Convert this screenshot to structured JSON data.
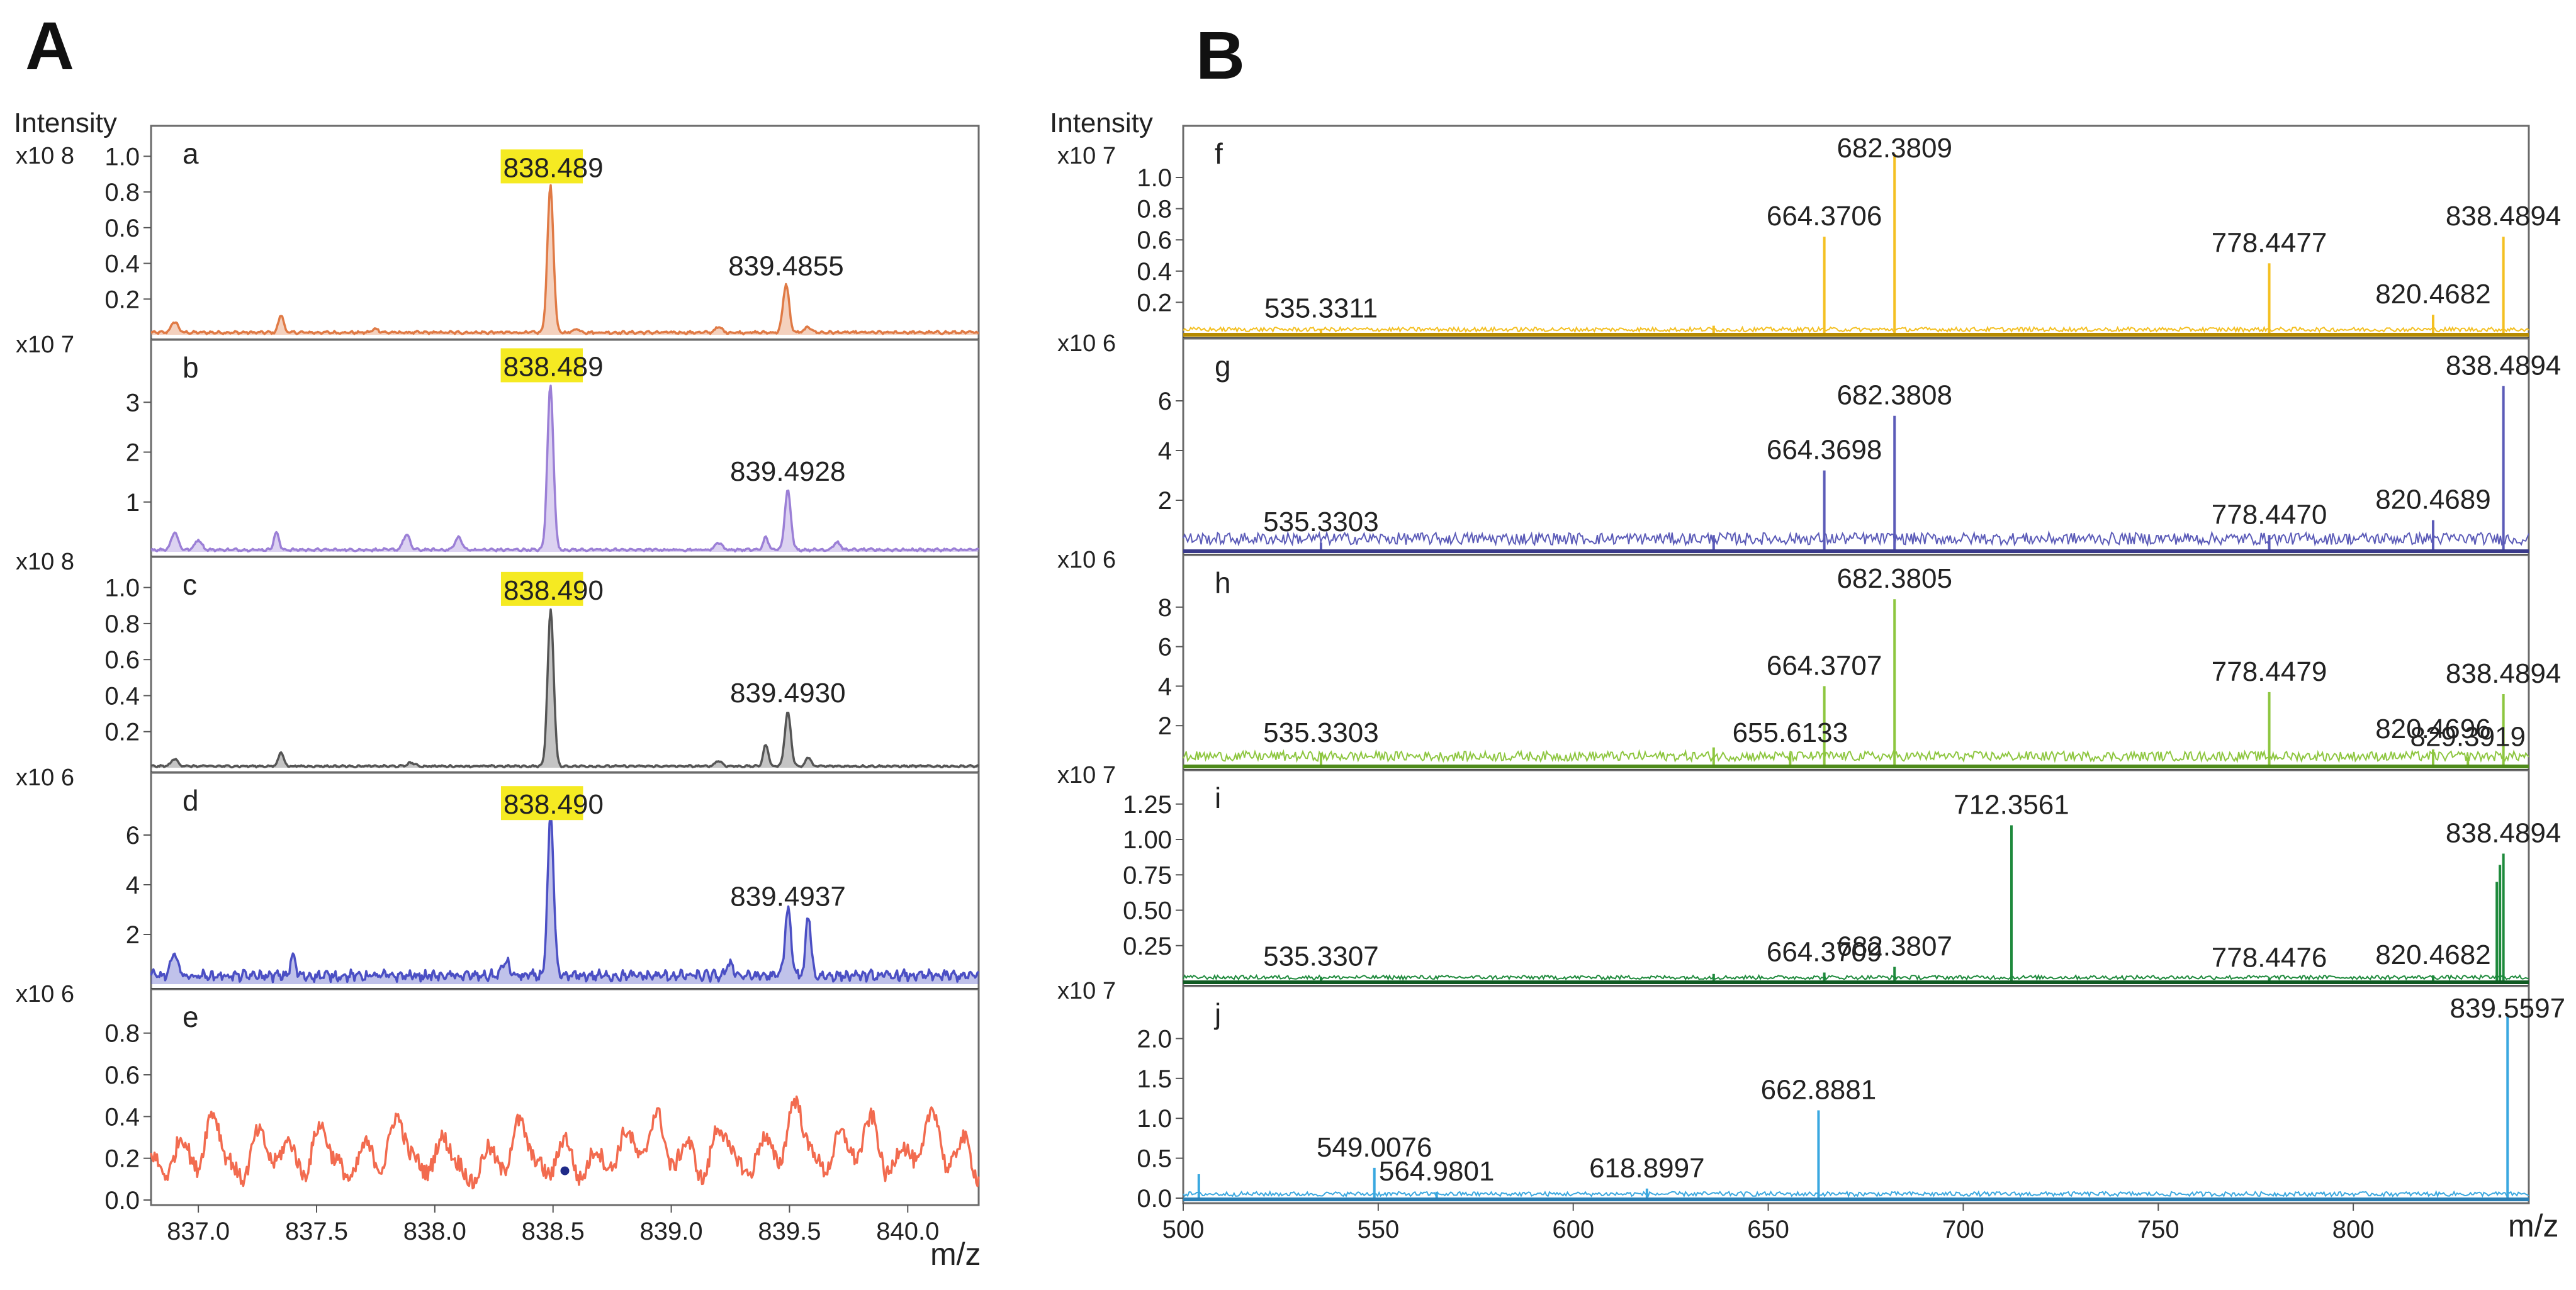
{
  "figure": {
    "panel_A_label": "A",
    "panel_B_label": "B",
    "y_axis_label": "Intensity",
    "x_axis_unit": "m/z"
  },
  "chart_data": [
    {
      "panel": "A",
      "type": "line",
      "xlim": [
        836.8,
        840.3
      ],
      "x_ticks": [
        "837.0",
        "837.5",
        "838.0",
        "838.5",
        "839.0",
        "839.5",
        "840.0"
      ],
      "xlabel": "m/z",
      "ylabel": "Intensity",
      "grid": false,
      "subplots": [
        {
          "id": "a",
          "label": "a",
          "scale": "x10 8",
          "color": "#e07a45",
          "fill": true,
          "ylim": [
            0,
            1.1
          ],
          "y_ticks": [
            "0.2",
            "0.4",
            "0.6",
            "0.8",
            "1.0"
          ],
          "peaks": [
            {
              "x": 838.489,
              "y": 0.82,
              "w": 0.018
            },
            {
              "x": 839.4855,
              "y": 0.27,
              "w": 0.018
            },
            {
              "x": 836.9,
              "y": 0.06,
              "w": 0.02
            },
            {
              "x": 837.35,
              "y": 0.1,
              "w": 0.015
            },
            {
              "x": 837.75,
              "y": 0.02,
              "w": 0.02
            },
            {
              "x": 838.6,
              "y": 0.02,
              "w": 0.02
            },
            {
              "x": 839.2,
              "y": 0.03,
              "w": 0.02
            },
            {
              "x": 839.58,
              "y": 0.03,
              "w": 0.02
            }
          ],
          "noise": 0.015,
          "annotations": [
            {
              "text": "838.489",
              "x": 838.489,
              "y": 0.82,
              "highlight": true,
              "highlight_chars": 5
            },
            {
              "text": "839.4855",
              "x": 839.4855,
              "y": 0.27,
              "highlight": false
            }
          ]
        },
        {
          "id": "b",
          "label": "b",
          "scale": "x10 7",
          "color": "#9b7fd6",
          "fill": true,
          "ylim": [
            0,
            4.0
          ],
          "y_ticks": [
            "1",
            "2",
            "3"
          ],
          "peaks": [
            {
              "x": 838.489,
              "y": 3.3,
              "w": 0.018
            },
            {
              "x": 839.4928,
              "y": 1.2,
              "w": 0.018
            },
            {
              "x": 839.4,
              "y": 0.25,
              "w": 0.015
            },
            {
              "x": 836.9,
              "y": 0.35,
              "w": 0.02
            },
            {
              "x": 837.0,
              "y": 0.2,
              "w": 0.02
            },
            {
              "x": 837.33,
              "y": 0.35,
              "w": 0.015
            },
            {
              "x": 837.88,
              "y": 0.3,
              "w": 0.02
            },
            {
              "x": 838.1,
              "y": 0.25,
              "w": 0.02
            },
            {
              "x": 839.2,
              "y": 0.15,
              "w": 0.02
            },
            {
              "x": 839.7,
              "y": 0.15,
              "w": 0.02
            }
          ],
          "noise": 0.05,
          "annotations": [
            {
              "text": "838.489",
              "x": 838.489,
              "y": 3.3,
              "highlight": true,
              "highlight_chars": 5
            },
            {
              "text": "839.4928",
              "x": 839.4928,
              "y": 1.2,
              "highlight": false
            }
          ]
        },
        {
          "id": "c",
          "label": "c",
          "scale": "x10 8",
          "color": "#555555",
          "fill": true,
          "ylim": [
            0,
            1.1
          ],
          "y_ticks": [
            "0.2",
            "0.4",
            "0.6",
            "0.8",
            "1.0"
          ],
          "peaks": [
            {
              "x": 838.49,
              "y": 0.87,
              "w": 0.018
            },
            {
              "x": 839.493,
              "y": 0.3,
              "w": 0.018
            },
            {
              "x": 839.4,
              "y": 0.12,
              "w": 0.015
            },
            {
              "x": 839.58,
              "y": 0.05,
              "w": 0.015
            },
            {
              "x": 836.9,
              "y": 0.04,
              "w": 0.02
            },
            {
              "x": 837.35,
              "y": 0.08,
              "w": 0.015
            },
            {
              "x": 837.9,
              "y": 0.02,
              "w": 0.02
            },
            {
              "x": 839.2,
              "y": 0.03,
              "w": 0.02
            }
          ],
          "noise": 0.01,
          "annotations": [
            {
              "text": "838.490",
              "x": 838.49,
              "y": 0.87,
              "highlight": true,
              "highlight_chars": 5
            },
            {
              "text": "839.4930",
              "x": 839.493,
              "y": 0.3,
              "highlight": false
            }
          ]
        },
        {
          "id": "d",
          "label": "d",
          "scale": "x10 6",
          "color": "#4b4fc4",
          "fill": true,
          "ylim": [
            0,
            8.0
          ],
          "y_ticks": [
            "2",
            "4",
            "6"
          ],
          "peaks": [
            {
              "x": 838.49,
              "y": 6.4,
              "w": 0.018
            },
            {
              "x": 839.4937,
              "y": 2.7,
              "w": 0.018
            },
            {
              "x": 839.58,
              "y": 2.5,
              "w": 0.015
            },
            {
              "x": 836.9,
              "y": 0.9,
              "w": 0.02
            },
            {
              "x": 837.4,
              "y": 0.8,
              "w": 0.015
            },
            {
              "x": 838.3,
              "y": 0.6,
              "w": 0.02
            },
            {
              "x": 839.25,
              "y": 0.5,
              "w": 0.02
            }
          ],
          "noise": 0.4,
          "annotations": [
            {
              "text": "838.490",
              "x": 838.49,
              "y": 6.4,
              "highlight": true,
              "highlight_chars": 5
            },
            {
              "text": "839.4937",
              "x": 839.4937,
              "y": 2.7,
              "highlight": false
            }
          ]
        },
        {
          "id": "e",
          "label": "e",
          "scale": "x10 6",
          "color": "#f26b4f",
          "fill": false,
          "ylim": [
            0,
            0.95
          ],
          "y_ticks": [
            "0.0",
            "0.2",
            "0.4",
            "0.6",
            "0.8"
          ],
          "peaks": [],
          "noise_profile": [
            0.22,
            0.12,
            0.3,
            0.15,
            0.42,
            0.2,
            0.1,
            0.33,
            0.18,
            0.28,
            0.12,
            0.36,
            0.2,
            0.1,
            0.27,
            0.15,
            0.4,
            0.22,
            0.13,
            0.3,
            0.18,
            0.08,
            0.25,
            0.14,
            0.38,
            0.2,
            0.12,
            0.3,
            0.1,
            0.24,
            0.15,
            0.33,
            0.2,
            0.42,
            0.16,
            0.28,
            0.1,
            0.35,
            0.22,
            0.12,
            0.3,
            0.18,
            0.48,
            0.25,
            0.14,
            0.32,
            0.2,
            0.4,
            0.12,
            0.26,
            0.18,
            0.44,
            0.15,
            0.3,
            0.1
          ],
          "marker": {
            "x": 838.55,
            "y": 0.14,
            "color": "#1f2a88"
          },
          "annotations": []
        }
      ]
    },
    {
      "panel": "B",
      "type": "line",
      "xlim": [
        500,
        845
      ],
      "x_ticks": [
        "500",
        "550",
        "600",
        "650",
        "700",
        "750",
        "800"
      ],
      "xlabel": "m/z",
      "ylabel": "Intensity",
      "grid": false,
      "subplots": [
        {
          "id": "f",
          "label": "f",
          "scale": "x10 7",
          "color": "#f4c022",
          "baseline_color": "#b58a00",
          "ylim": [
            0,
            1.25
          ],
          "y_ticks": [
            "0.2",
            "0.4",
            "0.6",
            "0.8",
            "1.0"
          ],
          "peaks": [
            {
              "x": 682.3809,
              "y": 1.15
            },
            {
              "x": 664.3706,
              "y": 0.62
            },
            {
              "x": 778.4477,
              "y": 0.45
            },
            {
              "x": 838.4894,
              "y": 0.62
            },
            {
              "x": 820.4682,
              "y": 0.12
            },
            {
              "x": 535.3311,
              "y": 0.03
            },
            {
              "x": 636,
              "y": 0.05
            }
          ],
          "noise": 0.02,
          "annotations": [
            {
              "text": "682.3809",
              "x": 682.3809,
              "y": 1.15
            },
            {
              "text": "664.3706",
              "x": 664.3706,
              "y": 0.62
            },
            {
              "text": "778.4477",
              "x": 778.4477,
              "y": 0.45
            },
            {
              "text": "838.4894",
              "x": 838.4894,
              "y": 0.62
            },
            {
              "text": "820.4682",
              "x": 820.4682,
              "y": 0.12
            },
            {
              "text": "535.3311",
              "x": 535.3311,
              "y": 0.03
            }
          ]
        },
        {
          "id": "g",
          "label": "g",
          "scale": "x10 6",
          "color": "#5b5bb8",
          "baseline_color": "#3a3a8a",
          "ylim": [
            0,
            8.0
          ],
          "y_ticks": [
            "2",
            "4",
            "6"
          ],
          "peaks": [
            {
              "x": 682.3808,
              "y": 5.4
            },
            {
              "x": 664.3698,
              "y": 3.2
            },
            {
              "x": 838.4894,
              "y": 6.6
            },
            {
              "x": 820.4689,
              "y": 1.2
            },
            {
              "x": 778.447,
              "y": 0.6
            },
            {
              "x": 535.3303,
              "y": 0.3
            },
            {
              "x": 636,
              "y": 0.6
            }
          ],
          "noise": 0.35,
          "annotations": [
            {
              "text": "682.3808",
              "x": 682.3808,
              "y": 5.4
            },
            {
              "text": "664.3698",
              "x": 664.3698,
              "y": 3.2
            },
            {
              "text": "838.4894",
              "x": 838.4894,
              "y": 6.6
            },
            {
              "text": "820.4689",
              "x": 820.4689,
              "y": 1.2
            },
            {
              "text": "778.4470",
              "x": 778.447,
              "y": 0.6
            },
            {
              "text": "535.3303",
              "x": 535.3303,
              "y": 0.3
            }
          ]
        },
        {
          "id": "h",
          "label": "h",
          "scale": "x10 6",
          "color": "#8dc63f",
          "baseline_color": "#4e8a1a",
          "ylim": [
            0,
            10.0
          ],
          "y_ticks": [
            "2",
            "4",
            "6",
            "8"
          ],
          "peaks": [
            {
              "x": 682.3805,
              "y": 8.4
            },
            {
              "x": 664.3707,
              "y": 4.0
            },
            {
              "x": 778.4479,
              "y": 3.7
            },
            {
              "x": 838.4894,
              "y": 3.6
            },
            {
              "x": 820.4696,
              "y": 0.8
            },
            {
              "x": 829.3919,
              "y": 0.4
            },
            {
              "x": 655.6133,
              "y": 0.6
            },
            {
              "x": 535.3303,
              "y": 0.6
            },
            {
              "x": 636,
              "y": 0.9
            }
          ],
          "noise": 0.35,
          "annotations": [
            {
              "text": "682.3805",
              "x": 682.3805,
              "y": 8.4
            },
            {
              "text": "664.3707",
              "x": 664.3707,
              "y": 4.0
            },
            {
              "text": "778.4479",
              "x": 778.4479,
              "y": 3.7
            },
            {
              "text": "838.4894",
              "x": 838.4894,
              "y": 3.6
            },
            {
              "text": "820.4696",
              "x": 820.4696,
              "y": 0.8
            },
            {
              "text": "829.3919",
              "x": 829.3919,
              "y": 0.4
            },
            {
              "text": "655.6133",
              "x": 655.6133,
              "y": 0.6
            },
            {
              "text": "535.3303",
              "x": 535.3303,
              "y": 0.6
            }
          ]
        },
        {
          "id": "i",
          "label": "i",
          "scale": "x10 7",
          "color": "#1e8a3c",
          "baseline_color": "#0f5a22",
          "ylim": [
            0,
            1.4
          ],
          "y_ticks": [
            "0.25",
            "0.50",
            "0.75",
            "1.00",
            "1.25"
          ],
          "peaks": [
            {
              "x": 712.3561,
              "y": 1.1
            },
            {
              "x": 838.4894,
              "y": 0.9
            },
            {
              "x": 836.8,
              "y": 0.7
            },
            {
              "x": 837.6,
              "y": 0.82
            },
            {
              "x": 682.3807,
              "y": 0.1
            },
            {
              "x": 664.3709,
              "y": 0.06
            },
            {
              "x": 778.4476,
              "y": 0.02
            },
            {
              "x": 820.4682,
              "y": 0.04
            },
            {
              "x": 535.3307,
              "y": 0.03
            },
            {
              "x": 636,
              "y": 0.05
            }
          ],
          "noise": 0.02,
          "annotations": [
            {
              "text": "712.3561",
              "x": 712.3561,
              "y": 1.1
            },
            {
              "text": "838.4894",
              "x": 838.4894,
              "y": 0.9
            },
            {
              "text": "682.3807",
              "x": 682.3807,
              "y": 0.1
            },
            {
              "text": "664.3709",
              "x": 664.3709,
              "y": 0.06
            },
            {
              "text": "778.4476",
              "x": 778.4476,
              "y": 0.02
            },
            {
              "text": "820.4682",
              "x": 820.4682,
              "y": 0.04
            },
            {
              "text": "535.3307",
              "x": 535.3307,
              "y": 0.03
            }
          ]
        },
        {
          "id": "j",
          "label": "j",
          "scale": "x10 7",
          "color": "#3aa8e0",
          "baseline_color": "#2a7fb5",
          "ylim": [
            0,
            2.5
          ],
          "y_ticks": [
            "0.0",
            "0.5",
            "1.0",
            "1.5",
            "2.0"
          ],
          "peaks": [
            {
              "x": 839.5597,
              "y": 2.3
            },
            {
              "x": 662.8881,
              "y": 1.1
            },
            {
              "x": 549.0076,
              "y": 0.38
            },
            {
              "x": 564.9801,
              "y": 0.08
            },
            {
              "x": 618.8997,
              "y": 0.12
            },
            {
              "x": 504,
              "y": 0.3
            }
          ],
          "noise": 0.04,
          "annotations": [
            {
              "text": "839.5597",
              "x": 839.5597,
              "y": 2.3
            },
            {
              "text": "662.8881",
              "x": 662.8881,
              "y": 1.1
            },
            {
              "text": "549.0076",
              "x": 549.0076,
              "y": 0.38
            },
            {
              "text": "564.9801",
              "x": 564.9801,
              "y": 0.08
            },
            {
              "text": "618.8997",
              "x": 618.8997,
              "y": 0.12
            }
          ]
        }
      ]
    }
  ]
}
